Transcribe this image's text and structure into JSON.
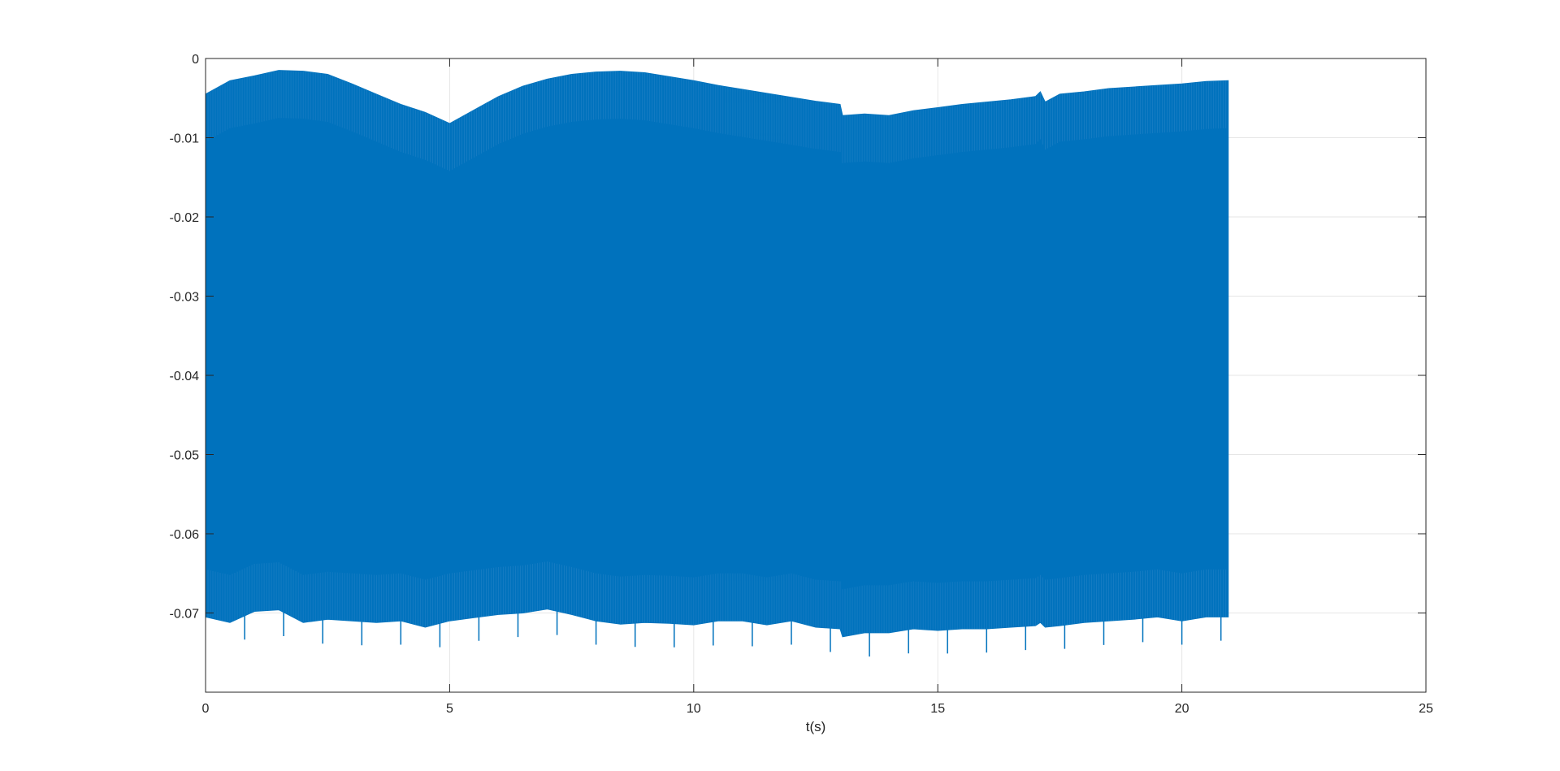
{
  "figure": {
    "background_color": "#ffffff"
  },
  "chart_data": {
    "type": "area",
    "title": "",
    "xlabel": "t(s)",
    "ylabel": "",
    "xlim": [
      0,
      25
    ],
    "ylim": [
      -0.08,
      0
    ],
    "xticks": [
      0,
      5,
      10,
      15,
      20,
      25
    ],
    "xtick_labels": [
      "0",
      "5",
      "10",
      "15",
      "20",
      "25"
    ],
    "yticks": [
      0,
      -0.01,
      -0.02,
      -0.03,
      -0.04,
      -0.05,
      -0.06,
      -0.07
    ],
    "ytick_labels": [
      "0",
      "-0.01",
      "-0.02",
      "-0.03",
      "-0.04",
      "-0.05",
      "-0.06",
      "-0.07"
    ],
    "grid": true,
    "legend": "none",
    "series_color": "#0072BD",
    "series": [
      {
        "description": "dense oscillating signal; envelope upper/lower bounds",
        "x": [
          0,
          0.5,
          1.0,
          1.5,
          2.0,
          2.5,
          3.0,
          3.5,
          4.0,
          4.5,
          5.0,
          5.5,
          6.0,
          6.5,
          7.0,
          7.5,
          8.0,
          8.5,
          9.0,
          9.5,
          10.0,
          10.5,
          11.0,
          11.5,
          12.0,
          12.5,
          13.0,
          13.05,
          13.5,
          14.0,
          14.5,
          15.0,
          15.5,
          16.0,
          16.5,
          17.0,
          17.1,
          17.2,
          17.5,
          18.0,
          18.5,
          19.0,
          19.5,
          20.0,
          20.5,
          20.95
        ],
        "upper": [
          -0.0045,
          -0.0028,
          -0.0022,
          -0.0015,
          -0.0016,
          -0.002,
          -0.0032,
          -0.0045,
          -0.0058,
          -0.0068,
          -0.0082,
          -0.0065,
          -0.0048,
          -0.0035,
          -0.0026,
          -0.002,
          -0.0017,
          -0.0016,
          -0.0018,
          -0.0023,
          -0.0028,
          -0.0034,
          -0.0039,
          -0.0044,
          -0.0049,
          -0.0054,
          -0.0058,
          -0.0072,
          -0.007,
          -0.0072,
          -0.0066,
          -0.0062,
          -0.0058,
          -0.0055,
          -0.0052,
          -0.0048,
          -0.0042,
          -0.0055,
          -0.0045,
          -0.0042,
          -0.0038,
          -0.0036,
          -0.0034,
          -0.0032,
          -0.0029,
          -0.0028
        ],
        "lower": [
          -0.0705,
          -0.0712,
          -0.0698,
          -0.0696,
          -0.0712,
          -0.0708,
          -0.071,
          -0.0712,
          -0.071,
          -0.0718,
          -0.071,
          -0.0706,
          -0.0702,
          -0.07,
          -0.0695,
          -0.0702,
          -0.071,
          -0.0714,
          -0.0712,
          -0.0713,
          -0.0715,
          -0.071,
          -0.071,
          -0.0715,
          -0.071,
          -0.0718,
          -0.072,
          -0.073,
          -0.0725,
          -0.0725,
          -0.072,
          -0.0722,
          -0.072,
          -0.072,
          -0.0718,
          -0.0716,
          -0.0712,
          -0.0718,
          -0.0716,
          -0.0712,
          -0.071,
          -0.0708,
          -0.0705,
          -0.071,
          -0.0705,
          -0.0705
        ]
      }
    ]
  }
}
